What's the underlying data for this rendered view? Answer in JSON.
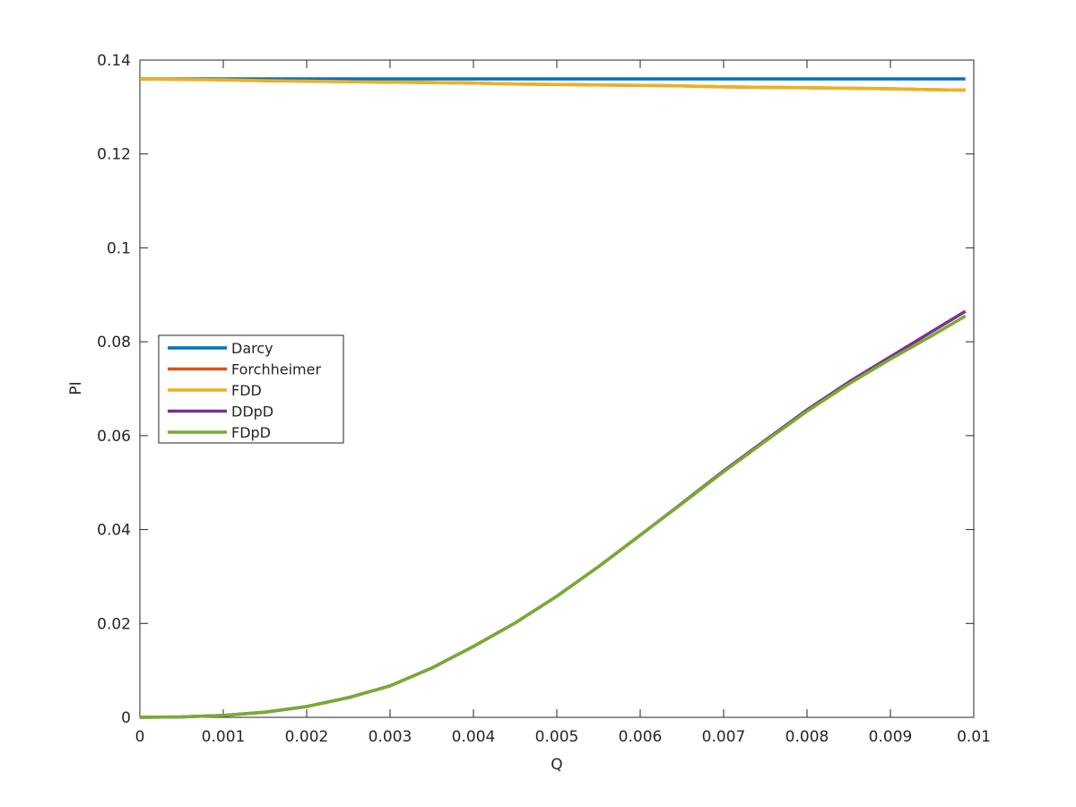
{
  "chart_data": {
    "type": "line",
    "x_label": "Q",
    "y_label": "PI",
    "x": [
      0,
      0.0005,
      0.001,
      0.0015,
      0.002,
      0.0025,
      0.003,
      0.0035,
      0.004,
      0.0045,
      0.005,
      0.0055,
      0.006,
      0.0065,
      0.007,
      0.0075,
      0.008,
      0.0085,
      0.009,
      0.0095,
      0.0099
    ],
    "series": [
      {
        "name": "Darcy",
        "color": "#0072bd",
        "values": [
          0.136,
          0.136,
          0.136,
          0.136,
          0.136,
          0.136,
          0.136,
          0.136,
          0.136,
          0.136,
          0.136,
          0.136,
          0.136,
          0.136,
          0.136,
          0.136,
          0.136,
          0.136,
          0.136,
          0.136,
          0.136
        ]
      },
      {
        "name": "Forchheimer",
        "color": "#d95319",
        "values": [
          0.136,
          0.1359,
          0.1358,
          0.1356,
          0.1355,
          0.1354,
          0.1353,
          0.1352,
          0.1351,
          0.1349,
          0.1348,
          0.1347,
          0.1346,
          0.1345,
          0.1343,
          0.1342,
          0.1341,
          0.134,
          0.1339,
          0.1337,
          0.1336
        ]
      },
      {
        "name": "FDD",
        "color": "#edb120",
        "values": [
          0.136,
          0.1359,
          0.1358,
          0.1356,
          0.1355,
          0.1354,
          0.1353,
          0.1352,
          0.1351,
          0.1349,
          0.1348,
          0.1347,
          0.1346,
          0.1345,
          0.1343,
          0.1342,
          0.1341,
          0.134,
          0.1339,
          0.1337,
          0.1336
        ]
      },
      {
        "name": "DDpD",
        "color": "#7e2f8e",
        "values": [
          0,
          0.0001,
          0.0004,
          0.0011,
          0.0023,
          0.0042,
          0.0067,
          0.0105,
          0.0151,
          0.0201,
          0.0258,
          0.0321,
          0.0388,
          0.0456,
          0.0525,
          0.059,
          0.0655,
          0.0714,
          0.0768,
          0.0822,
          0.0865
        ]
      },
      {
        "name": "FDpD",
        "color": "#77ac30",
        "values": [
          0,
          0.0001,
          0.0004,
          0.0011,
          0.0023,
          0.0042,
          0.0067,
          0.0105,
          0.0151,
          0.0201,
          0.0258,
          0.0321,
          0.0388,
          0.0455,
          0.0523,
          0.0588,
          0.0652,
          0.071,
          0.0763,
          0.0813,
          0.0855
        ]
      }
    ],
    "xlim": [
      0,
      0.01
    ],
    "xticks": [
      0,
      0.001,
      0.002,
      0.003,
      0.004,
      0.005,
      0.006,
      0.007,
      0.008,
      0.009,
      0.01
    ],
    "ylim": [
      0,
      0.14
    ],
    "yticks": [
      0,
      0.02,
      0.04,
      0.06,
      0.08,
      0.1,
      0.12,
      0.14
    ],
    "grid": false,
    "legend": "west"
  }
}
